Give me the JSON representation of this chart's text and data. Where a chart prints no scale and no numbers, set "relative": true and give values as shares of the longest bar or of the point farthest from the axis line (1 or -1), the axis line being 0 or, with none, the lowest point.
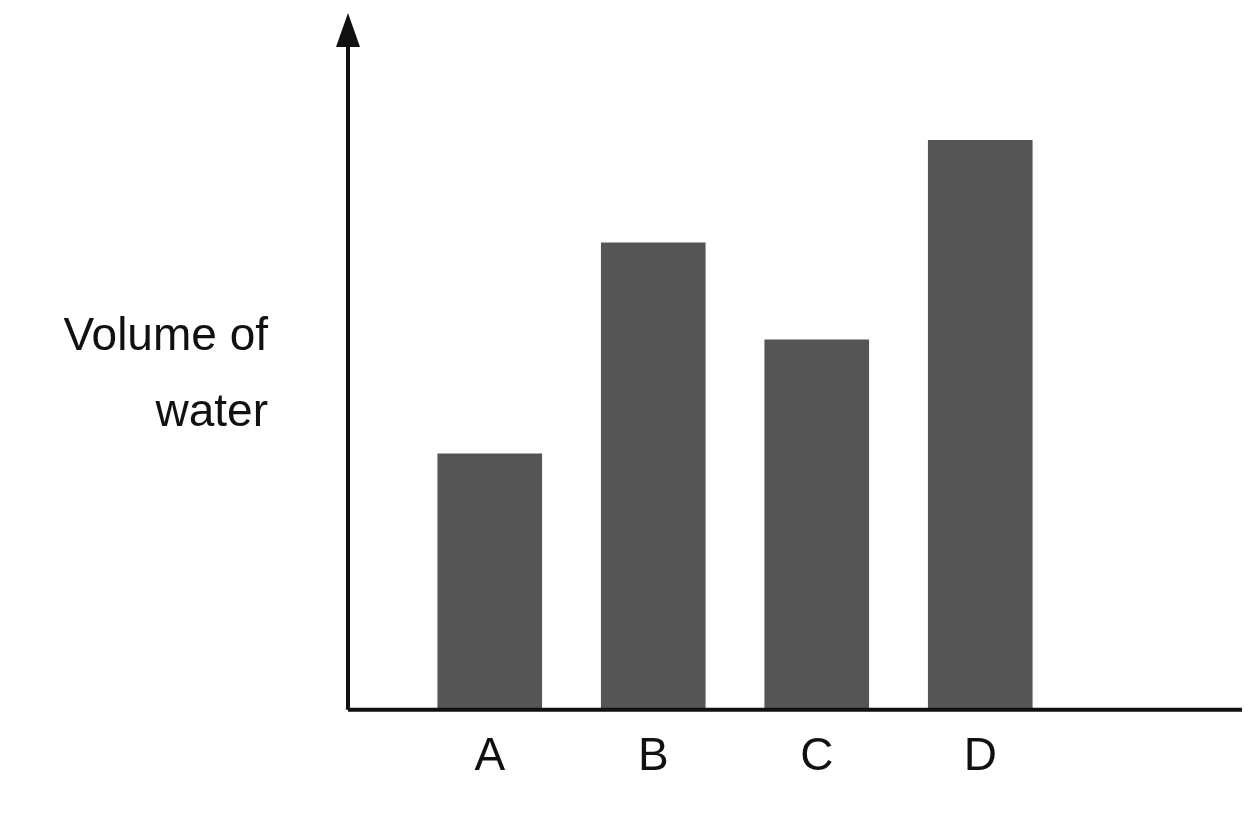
{
  "chart_data": {
    "type": "bar",
    "ylabel": "Volume of water",
    "categories": [
      "A",
      "B",
      "C",
      "D"
    ],
    "values": [
      0.45,
      0.82,
      0.65,
      1.0
    ],
    "color": "#555555",
    "relative": true,
    "grid": false,
    "legend": false
  }
}
